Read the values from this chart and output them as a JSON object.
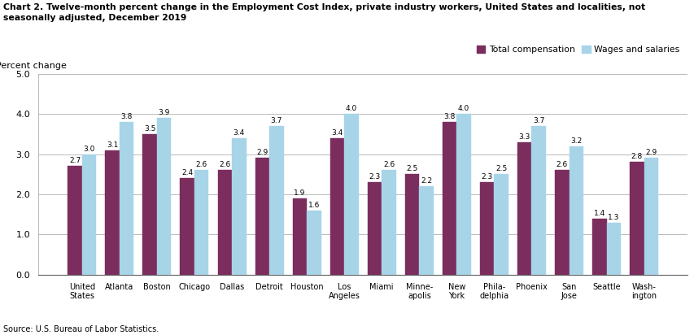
{
  "title": "Chart 2. Twelve-month percent change in the Employment Cost Index, private industry workers, United States and localities, not\nseasonally adjusted, December 2019",
  "ylabel": "Percent change",
  "source": "Source: U.S. Bureau of Labor Statistics.",
  "categories": [
    "United\nStates",
    "Atlanta",
    "Boston",
    "Chicago",
    "Dallas",
    "Detroit",
    "Houston",
    "Los\nAngeles",
    "Miami",
    "Minne-\napolis",
    "New\nYork",
    "Phila-\ndelphia",
    "Phoenix",
    "San\nJose",
    "Seattle",
    "Wash-\nington"
  ],
  "total_compensation": [
    2.7,
    3.1,
    3.5,
    2.4,
    2.6,
    2.9,
    1.9,
    3.4,
    2.3,
    2.5,
    3.8,
    2.3,
    3.3,
    2.6,
    1.4,
    2.8
  ],
  "wages_and_salaries": [
    3.0,
    3.8,
    3.9,
    2.6,
    3.4,
    3.7,
    1.6,
    4.0,
    2.6,
    2.2,
    4.0,
    2.5,
    3.7,
    3.2,
    1.3,
    2.9
  ],
  "color_total": "#7B2D5E",
  "color_wages": "#A8D4E8",
  "ylim": [
    0,
    5.0
  ],
  "yticks": [
    0.0,
    1.0,
    2.0,
    3.0,
    4.0,
    5.0
  ],
  "legend_total": "Total compensation",
  "legend_wages": "Wages and salaries",
  "bar_width": 0.38
}
